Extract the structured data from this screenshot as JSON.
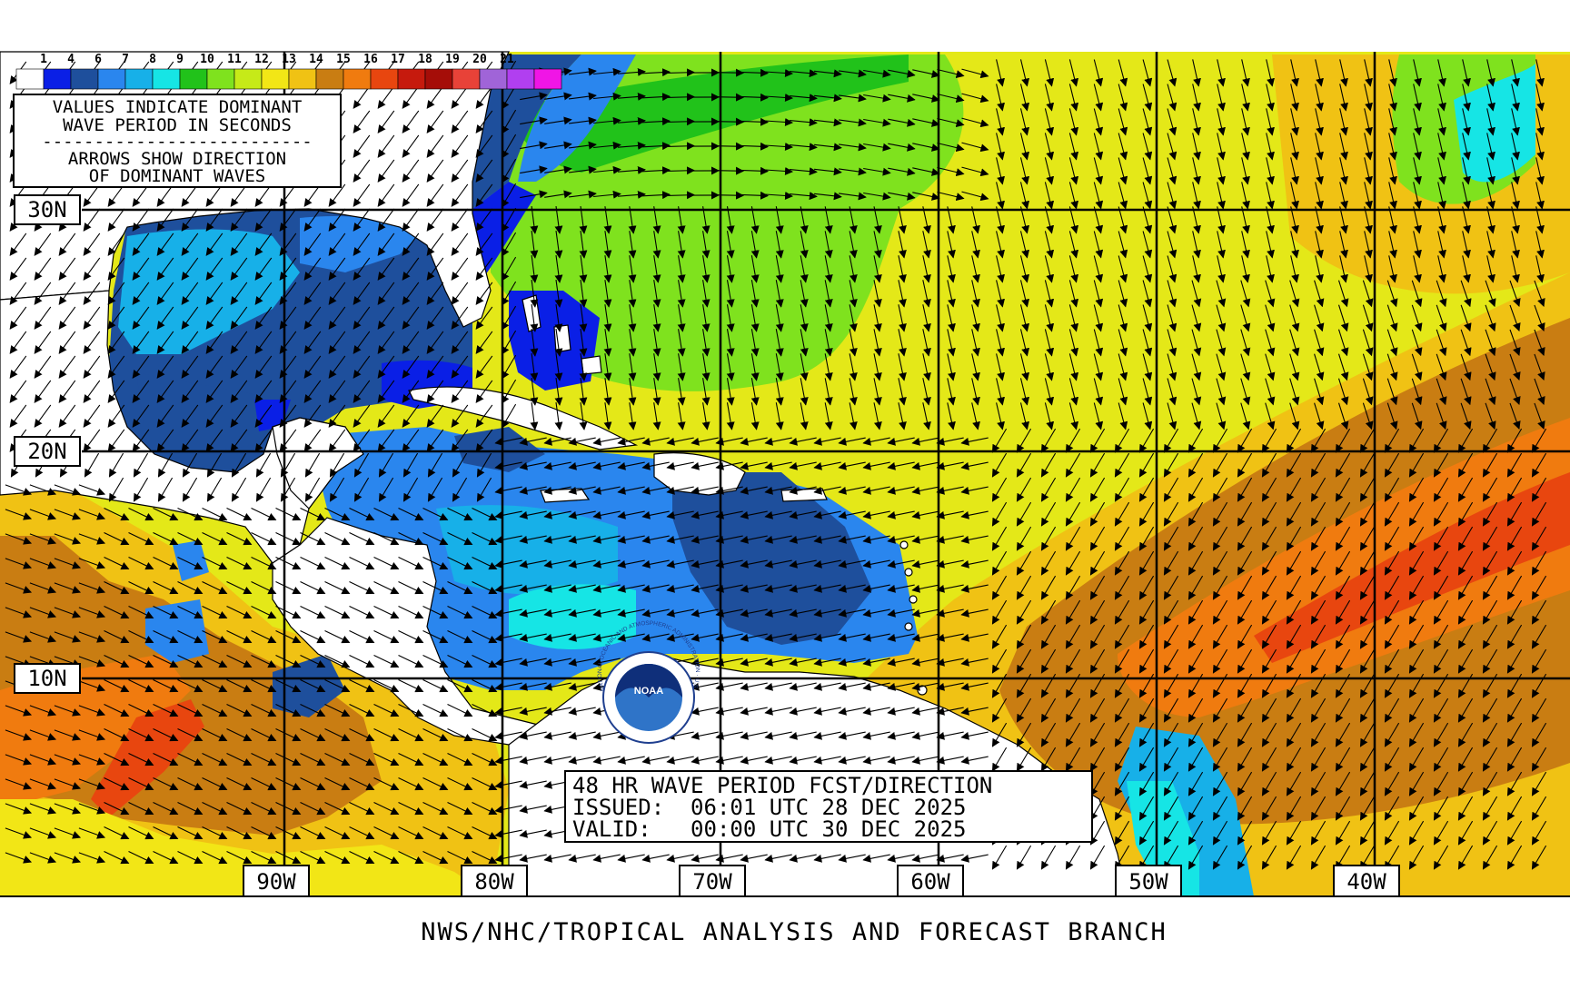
{
  "colorbar": {
    "ticks": [
      "1",
      "4",
      "6",
      "7",
      "8",
      "9",
      "10",
      "11",
      "12",
      "13",
      "14",
      "15",
      "16",
      "17",
      "18",
      "19",
      "20",
      "21"
    ],
    "colors": [
      "#ffffff",
      "#0a1fe6",
      "#1e4f9c",
      "#2a86ee",
      "#17b0e8",
      "#16e5e5",
      "#21c21a",
      "#7fe21e",
      "#c6ea18",
      "#f2e616",
      "#f0c214",
      "#c97d12",
      "#f07b0f",
      "#e8460f",
      "#c61a0d",
      "#a50d08",
      "#e84238",
      "#a064d8",
      "#b13ff0",
      "#f015e6"
    ]
  },
  "legend": {
    "line1": "VALUES INDICATE DOMINANT",
    "line2": "WAVE PERIOD IN SECONDS",
    "separator": "--------------------------",
    "line3": "ARROWS SHOW DIRECTION",
    "line4": "OF DOMINANT WAVES"
  },
  "lat_labels": [
    "30N",
    "20N",
    "10N"
  ],
  "lon_labels": [
    "90W",
    "80W",
    "70W",
    "60W",
    "50W",
    "40W"
  ],
  "forecast_box": {
    "line1": "48 HR WAVE PERIOD FCST/DIRECTION",
    "line2": "ISSUED:  06:01 UTC 28 DEC 2025",
    "line3": "VALID:   00:00 UTC 30 DEC 2025"
  },
  "logo": {
    "text": "NOAA",
    "ring_text": "NATIONAL OCEANIC AND ATMOSPHERIC ADMINISTRATION · U.S. DEPARTMENT OF COMMERCE"
  },
  "footer": "NWS/NHC/TROPICAL ANALYSIS AND FORECAST BRANCH",
  "colors": {
    "land": "#ffffff",
    "grid": "#000000",
    "default_sea": "#e4e818"
  }
}
